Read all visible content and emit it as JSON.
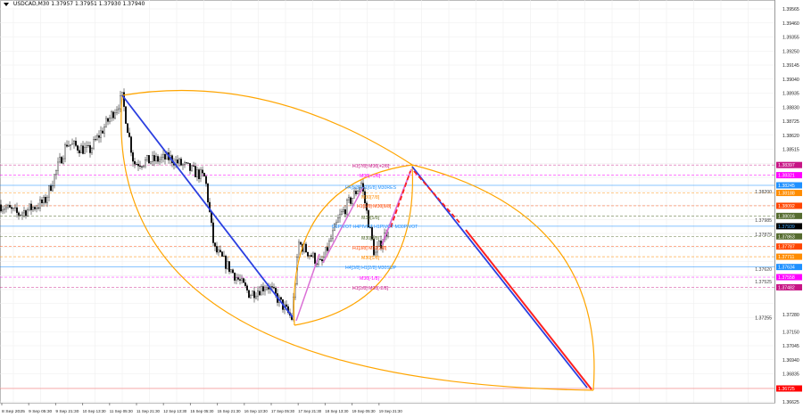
{
  "header": {
    "symbol": "USDCAD,M30",
    "ohlc": "1.37957 1.37951 1.37930 1.37940"
  },
  "chart_data": {
    "type": "candlestick",
    "title": "USDCAD,M30",
    "ylim": [
      1.36625,
      1.39565
    ],
    "y_ticks": [
      "1.39565",
      "1.39460",
      "1.39355",
      "1.39250",
      "1.39145",
      "1.39040",
      "1.38935",
      "1.38830",
      "1.38725",
      "1.38620",
      "1.38515",
      "1.37280",
      "1.37255",
      "1.37150",
      "1.37045",
      "1.36940",
      "1.36835",
      "1.36625"
    ],
    "x_ticks": [
      "8 Sep 2025",
      "9 Sep 05:30",
      "9 Sep 21:30",
      "10 Sep 13:30",
      "11 Sep 05:30",
      "11 Sep 21:30",
      "12 Sep 13:30",
      "15 Sep 05:30",
      "15 Sep 21:30",
      "16 Sep 13:30",
      "17 Sep 05:30",
      "17 Sep 21:30",
      "18 Sep 13:30",
      "19 Sep 05:30",
      "19 Sep 21:30"
    ],
    "price_path": [
      {
        "t": "8 Sep 2025",
        "p": 1.381
      },
      {
        "t": "9 Sep 01:30",
        "p": 1.3803
      },
      {
        "t": "9 Sep 13:30",
        "p": 1.3812
      },
      {
        "t": "10 Sep 01:30",
        "p": 1.3856
      },
      {
        "t": "10 Sep 13:30",
        "p": 1.385
      },
      {
        "t": "11 Sep 05:30",
        "p": 1.389
      },
      {
        "t": "11 Sep 13:30",
        "p": 1.3841
      },
      {
        "t": "12 Sep 13:30",
        "p": 1.3845
      },
      {
        "t": "15 Sep 05:30",
        "p": 1.383
      },
      {
        "t": "15 Sep 09:30",
        "p": 1.3777
      },
      {
        "t": "16 Sep 05:30",
        "p": 1.3743
      },
      {
        "t": "16 Sep 13:30",
        "p": 1.375
      },
      {
        "t": "17 Sep 05:30",
        "p": 1.3725
      },
      {
        "t": "17 Sep 09:30",
        "p": 1.3781
      },
      {
        "t": "17 Sep 21:30",
        "p": 1.3765
      },
      {
        "t": "18 Sep 09:30",
        "p": 1.38
      },
      {
        "t": "18 Sep 21:30",
        "p": 1.3826
      },
      {
        "t": "19 Sep 05:30",
        "p": 1.3772
      },
      {
        "t": "19 Sep 13:30",
        "p": 1.3794
      }
    ],
    "levels": [
      {
        "price": "1.38397",
        "label": "H1[7/8] M30[+2/8]",
        "color": "#c71585"
      },
      {
        "price": "1.38321",
        "label": "M30[+1/8]",
        "color": "#ff00ff"
      },
      {
        "price": "1.38245",
        "label": "H4[5/8] H1[6/8] M30RES",
        "color": "#1e90ff"
      },
      {
        "price": "1.38188",
        "label": "M30[7/8]",
        "color": "#ff8c00"
      },
      {
        "price": "1.38092",
        "label": "H1[5/8] M30[6/8]",
        "color": "#ff4500"
      },
      {
        "price": "1.38016",
        "label": "M30[5/8]",
        "color": "#556b2f"
      },
      {
        "price": "1.37939",
        "label": "D1PIVOT H4PIVOT H1PIVOT M30PIVOT",
        "color": "#1e90ff"
      },
      {
        "price": "1.37863",
        "label": "M30[3/8]",
        "color": "#556b2f"
      },
      {
        "price": "1.37787",
        "label": "H1[3/8] M30[2/8]",
        "color": "#ff4500"
      },
      {
        "price": "1.37711",
        "label": "M30[1/8]",
        "color": "#ff8c00"
      },
      {
        "price": "1.37634",
        "label": "H4[3/8] H1[2/8] M30SUP",
        "color": "#1e90ff"
      },
      {
        "price": "1.37558",
        "label": "M30[-1/8]",
        "color": "#ff00ff"
      },
      {
        "price": "1.37482",
        "label": "H1[1/8] M30[-2/8]",
        "color": "#c71585"
      }
    ],
    "axis_plain_labels": [
      "1.38200",
      "1.37985",
      "1.37879",
      "1.37620",
      "1.37525"
    ],
    "current_price": "1.37939",
    "target": {
      "price": "1.36725",
      "color": "#ff0000"
    },
    "colors": {
      "trend_line": "#2b3fe0",
      "arc": "#ffa500",
      "wave": "#da70d6",
      "forecast": "#ff2020"
    }
  }
}
